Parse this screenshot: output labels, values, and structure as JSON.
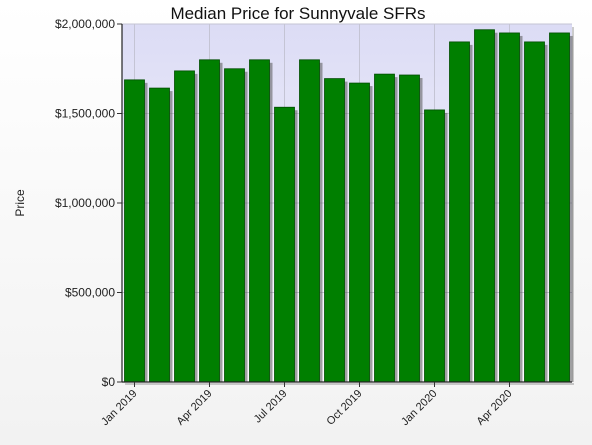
{
  "chart_data": {
    "type": "bar",
    "title": "Median Price for Sunnyvale SFRs",
    "xlabel": "",
    "ylabel": "Price",
    "ylim": [
      0,
      2000000
    ],
    "yticks": [
      0,
      500000,
      1000000,
      1500000,
      2000000
    ],
    "ytick_labels": [
      "$0",
      "$500,000",
      "$1,000,000",
      "$1,500,000",
      "$2,000,000"
    ],
    "x_tick_labels": [
      {
        "index": 0,
        "label": "Jan 2019"
      },
      {
        "index": 3,
        "label": "Apr 2019"
      },
      {
        "index": 6,
        "label": "Jul 2019"
      },
      {
        "index": 9,
        "label": "Oct 2019"
      },
      {
        "index": 12,
        "label": "Jan 2020"
      },
      {
        "index": 15,
        "label": "Apr 2020"
      }
    ],
    "categories": [
      "2019-01",
      "2019-02",
      "2019-03",
      "2019-04",
      "2019-05",
      "2019-06",
      "2019-07",
      "2019-08",
      "2019-09",
      "2019-10",
      "2019-11",
      "2019-12",
      "2020-01",
      "2020-02",
      "2020-03",
      "2020-04",
      "2020-05",
      "2020-06"
    ],
    "values": [
      1688000,
      1642000,
      1738000,
      1800000,
      1750000,
      1800000,
      1535000,
      1800000,
      1695000,
      1670000,
      1720000,
      1715000,
      1520000,
      1900000,
      1968000,
      1950000,
      1900000,
      1950000
    ],
    "grid": true,
    "colors": {
      "bar": "#007f00",
      "bar_shadow": "#555555",
      "plot_bg_top": "#dcdcf5",
      "plot_bg_bottom": "#fbfbff"
    }
  }
}
